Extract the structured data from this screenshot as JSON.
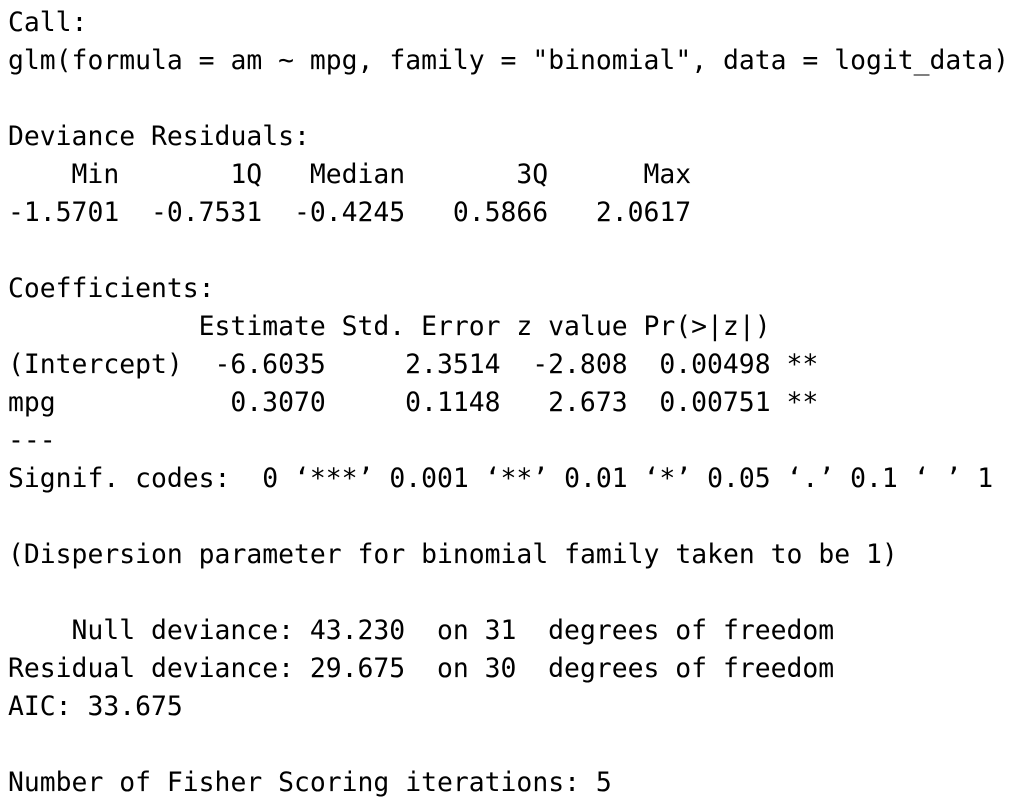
{
  "console": {
    "call": {
      "header": "Call:",
      "formula": "glm(formula = am ~ mpg, family = \"binomial\", data = logit_data)"
    },
    "deviance_residuals": {
      "header": "Deviance Residuals:",
      "columns": [
        "Min",
        "1Q",
        "Median",
        "3Q",
        "Max"
      ],
      "values": [
        "-1.5701",
        "-0.7531",
        "-0.4245",
        "0.5866",
        "2.0617"
      ]
    },
    "coefficients": {
      "header": "Coefficients:",
      "columns": [
        "Estimate",
        "Std. Error",
        "z value",
        "Pr(>|z|)"
      ],
      "rows": [
        {
          "term": "(Intercept)",
          "estimate": "-6.6035",
          "std_error": "2.3514",
          "z_value": "-2.808",
          "p_value": "0.00498",
          "signif": "**"
        },
        {
          "term": "mpg",
          "estimate": "0.3070",
          "std_error": "0.1148",
          "z_value": "2.673",
          "p_value": "0.00751",
          "signif": "**"
        }
      ],
      "separator": "---",
      "signif_codes_label": "Signif. codes:",
      "signif_codes": "0 ‘***’ 0.001 ‘**’ 0.01 ‘*’ 0.05 ‘.’ 0.1 ‘ ’ 1"
    },
    "dispersion_note": "(Dispersion parameter for binomial family taken to be 1)",
    "deviance": {
      "null": {
        "label": "Null deviance:",
        "value": "43.230",
        "on_word": "on",
        "df": "31",
        "suffix": "degrees of freedom"
      },
      "residual": {
        "label": "Residual deviance:",
        "value": "29.675",
        "on_word": "on",
        "df": "30",
        "suffix": "degrees of freedom"
      }
    },
    "aic": {
      "label": "AIC:",
      "value": "33.675"
    },
    "fisher": {
      "label": "Number of Fisher Scoring iterations:",
      "value": "5"
    }
  },
  "colors": {
    "background": "#ffffff",
    "text": "#000000"
  }
}
